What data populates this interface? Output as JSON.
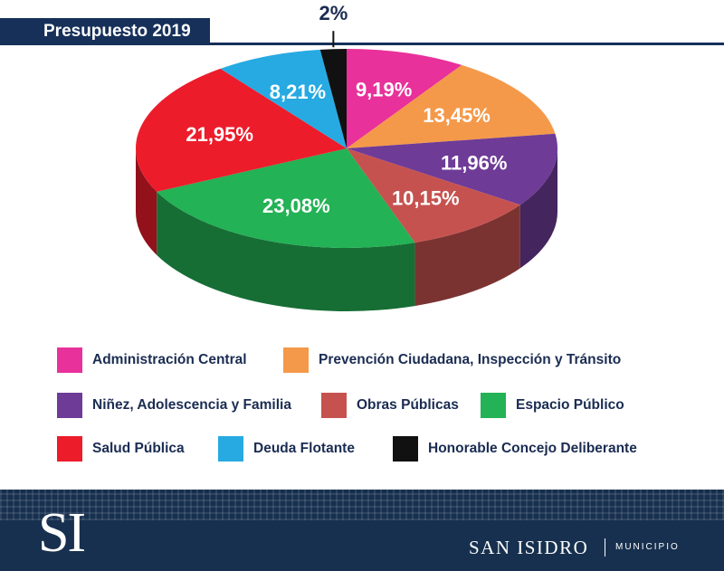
{
  "header": {
    "title": "Presupuesto 2019"
  },
  "chart_data": {
    "type": "pie",
    "unit": "%",
    "slices": [
      {
        "label": "Administración Central",
        "value": 9.19,
        "display": "9,19%",
        "color": "#e8319a"
      },
      {
        "label": "Prevención Ciudadana, Inspección y Tránsito",
        "value": 13.45,
        "display": "13,45%",
        "color": "#f4994a"
      },
      {
        "label": "Niñez, Adolescencia y Familia",
        "value": 11.96,
        "display": "11,96%",
        "color": "#6e3b97"
      },
      {
        "label": "Obras Públicas",
        "value": 10.15,
        "display": "10,15%",
        "color": "#c6524f"
      },
      {
        "label": "Espacio Público",
        "value": 23.08,
        "display": "23,08%",
        "color": "#23b255"
      },
      {
        "label": "Salud Pública",
        "value": 21.95,
        "display": "21,95%",
        "color": "#ec1c2b"
      },
      {
        "label": "Deuda Flotante",
        "value": 8.21,
        "display": "8,21%",
        "color": "#27aae2"
      },
      {
        "label": "Honorable Concejo Deliberante",
        "value": 2,
        "display": "2%",
        "color": "#111111"
      }
    ],
    "legend_placement": "bottom",
    "view": "3d-perspective"
  },
  "footer": {
    "logo_text": "SI",
    "name": "SAN ISIDRO",
    "subtitle": "MUNICIPIO"
  }
}
